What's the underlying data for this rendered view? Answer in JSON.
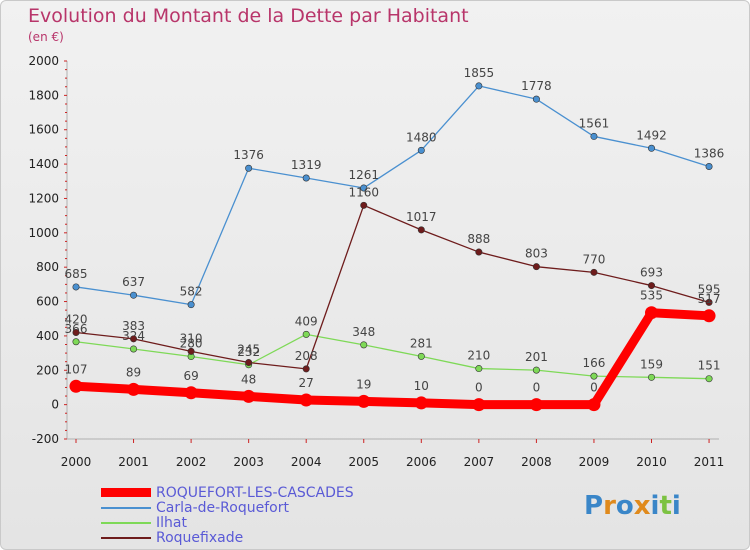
{
  "header": {
    "title": "Evolution du Montant de la Dette par Habitant",
    "subtitle": "(en €)"
  },
  "logo": {
    "text": "Proxiti",
    "letters": [
      {
        "ch": "P",
        "color": "#3a86c8"
      },
      {
        "ch": "r",
        "color": "#e08a1c"
      },
      {
        "ch": "o",
        "color": "#3a86c8"
      },
      {
        "ch": "x",
        "color": "#e08a1c"
      },
      {
        "ch": "i",
        "color": "#3a86c8"
      },
      {
        "ch": "t",
        "color": "#7cc242"
      },
      {
        "ch": "i",
        "color": "#3a86c8"
      }
    ]
  },
  "chart_data": {
    "type": "line",
    "title": "Evolution du Montant de la Dette par Habitant",
    "subtitle": "(en €)",
    "xlabel": "",
    "ylabel": "",
    "x": [
      "2000",
      "2001",
      "2002",
      "2003",
      "2004",
      "2005",
      "2006",
      "2007",
      "2008",
      "2009",
      "2010",
      "2011"
    ],
    "yticks": [
      -200,
      0,
      200,
      400,
      600,
      800,
      1000,
      1200,
      1400,
      1600,
      1800,
      2000
    ],
    "ylim": [
      -200,
      2000
    ],
    "grid": false,
    "legend_position": "bottom-left",
    "series": [
      {
        "name": "ROQUEFORT-LES-CASCADES",
        "color": "#ff0000",
        "values": [
          107,
          89,
          69,
          48,
          27,
          19,
          10,
          0,
          0,
          0,
          535,
          517
        ]
      },
      {
        "name": "Carla-de-Roquefort",
        "color": "#4a90d0",
        "values": [
          685,
          637,
          582,
          1376,
          1319,
          1261,
          1480,
          1855,
          1778,
          1561,
          1492,
          1386
        ]
      },
      {
        "name": "Ilhat",
        "color": "#7ed957",
        "values": [
          366,
          324,
          280,
          232,
          409,
          348,
          281,
          210,
          201,
          166,
          159,
          151
        ]
      },
      {
        "name": "Roquefixade",
        "color": "#6e1c1c",
        "values": [
          420,
          383,
          310,
          245,
          208,
          1160,
          1017,
          888,
          803,
          770,
          693,
          595
        ]
      }
    ]
  }
}
